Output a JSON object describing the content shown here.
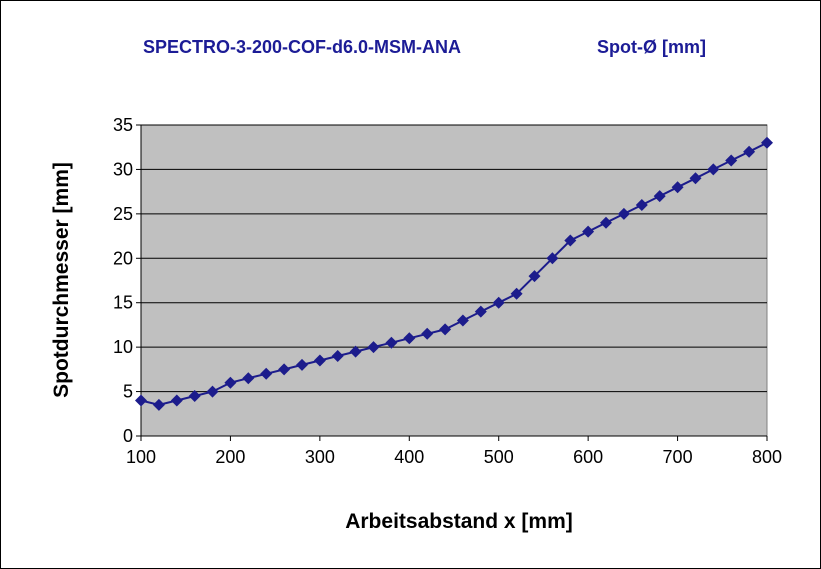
{
  "chart_data": {
    "type": "line",
    "title_left": "SPECTRO-3-200-COF-d6.0-MSM-ANA",
    "title_right": "Spot-Ø [mm]",
    "xlabel": "Arbeitsabstand x [mm]",
    "ylabel": "Spotdurchmesser [mm]",
    "xlim": [
      100,
      800
    ],
    "ylim": [
      0,
      35
    ],
    "xticks": [
      100,
      200,
      300,
      400,
      500,
      600,
      700,
      800
    ],
    "yticks": [
      0,
      5,
      10,
      15,
      20,
      25,
      30,
      35
    ],
    "grid": "horizontal",
    "legend": "none",
    "colors": {
      "plot_bg": "#c0c0c0",
      "line": "#1c1c8c",
      "marker": "#1c1c8c",
      "title": "#1c1c96"
    },
    "series": [
      {
        "x": [
          100,
          120,
          140,
          160,
          180,
          200,
          220,
          240,
          260,
          280,
          300,
          320,
          340,
          360,
          380,
          400,
          420,
          440,
          460,
          480,
          500,
          520,
          540,
          560,
          580,
          600,
          620,
          640,
          660,
          680,
          700,
          720,
          740,
          760,
          780,
          800
        ],
        "y": [
          4,
          3.5,
          4,
          4.5,
          5,
          6,
          6.5,
          7,
          7.5,
          8,
          8.5,
          9,
          9.5,
          10,
          10.5,
          11,
          11.5,
          12,
          13,
          14,
          15,
          16,
          18,
          20,
          22,
          23,
          24,
          25,
          26,
          27,
          28,
          29,
          30,
          31,
          32,
          33
        ]
      }
    ]
  }
}
